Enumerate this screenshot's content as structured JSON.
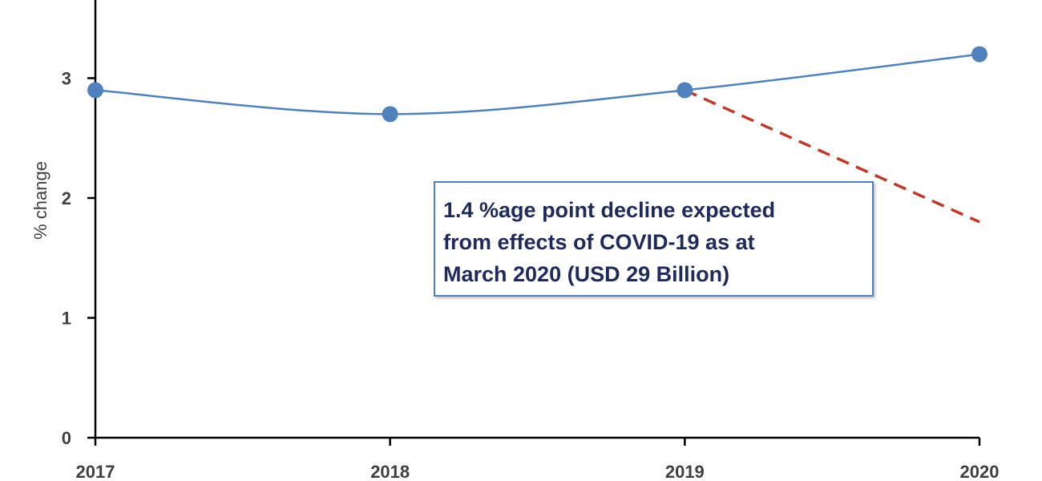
{
  "chart_data": {
    "type": "line",
    "categories": [
      "2017",
      "2018",
      "2019",
      "2020"
    ],
    "series": [
      {
        "values": [
          2.9,
          2.7,
          2.9,
          3.2
        ],
        "color": "#4f81bd",
        "style": "smooth-line-with-markers"
      },
      {
        "x": [
          "2019",
          "2020"
        ],
        "values": [
          2.9,
          1.8
        ],
        "color": "#c0392b",
        "style": "dashed"
      }
    ],
    "ylabel": "% change",
    "yticks": [
      0,
      1,
      2,
      3
    ],
    "ylim": [
      0,
      3.6
    ],
    "grid": false,
    "annotation": {
      "lines": [
        "1.4 %age point decline expected",
        "from effects of COVID-19 as at",
        "March 2020 (USD 29 Billion)"
      ],
      "border_color": "#4f81bd",
      "text_color": "#1f2a5c"
    }
  }
}
